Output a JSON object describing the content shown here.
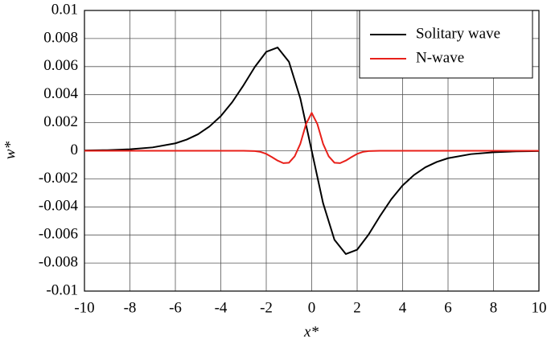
{
  "chart_data": {
    "type": "line",
    "xlabel": "x*",
    "ylabel": "w*",
    "xlim": [
      -10,
      10
    ],
    "ylim": [
      -0.01,
      0.01
    ],
    "xticks": [
      -10,
      -8,
      -6,
      -4,
      -2,
      0,
      2,
      4,
      6,
      8,
      10
    ],
    "yticks": [
      -0.01,
      -0.008,
      -0.006,
      -0.004,
      -0.002,
      0,
      0.002,
      0.004,
      0.006,
      0.008,
      0.01
    ],
    "grid": true,
    "legend": "upper right",
    "series": [
      {
        "name": "Solitary wave",
        "color": "#000000",
        "x": [
          -10,
          -9,
          -8,
          -7,
          -6,
          -5.5,
          -5,
          -4.5,
          -4,
          -3.5,
          -3,
          -2.5,
          -2,
          -1.5,
          -1,
          -0.5,
          0,
          0.5,
          1,
          1.5,
          2,
          2.5,
          3,
          3.5,
          4,
          4.5,
          5,
          5.5,
          6,
          7,
          8,
          9,
          10
        ],
        "values": [
          2e-05,
          4.6e-05,
          0.000105,
          0.00024,
          0.00053,
          0.0008,
          0.00118,
          0.00173,
          0.00247,
          0.00346,
          0.00467,
          0.00598,
          0.00705,
          0.00736,
          0.00634,
          0.00373,
          0,
          -0.00373,
          -0.00634,
          -0.00736,
          -0.00705,
          -0.00598,
          -0.00467,
          -0.00346,
          -0.00247,
          -0.00173,
          -0.00118,
          -0.0008,
          -0.00053,
          -0.00024,
          -0.000105,
          -4.6e-05,
          -2e-05
        ]
      },
      {
        "name": "N-wave",
        "color": "#e8201a",
        "x": [
          -10,
          -3,
          -2.5,
          -2.25,
          -2,
          -1.75,
          -1.5,
          -1.25,
          -1,
          -0.75,
          -0.5,
          -0.25,
          0,
          0.25,
          0.5,
          0.75,
          1,
          1.25,
          1.5,
          1.75,
          2,
          2.25,
          2.5,
          3,
          10
        ],
        "values": [
          0,
          0,
          -2e-05,
          -8e-05,
          -0.00022,
          -0.00045,
          -0.0007,
          -0.00088,
          -0.00085,
          -0.0004,
          0.0005,
          0.0019,
          0.0027,
          0.0019,
          0.0005,
          -0.0004,
          -0.00085,
          -0.00088,
          -0.0007,
          -0.00045,
          -0.00022,
          -8e-05,
          -2e-05,
          0,
          0
        ]
      }
    ]
  }
}
